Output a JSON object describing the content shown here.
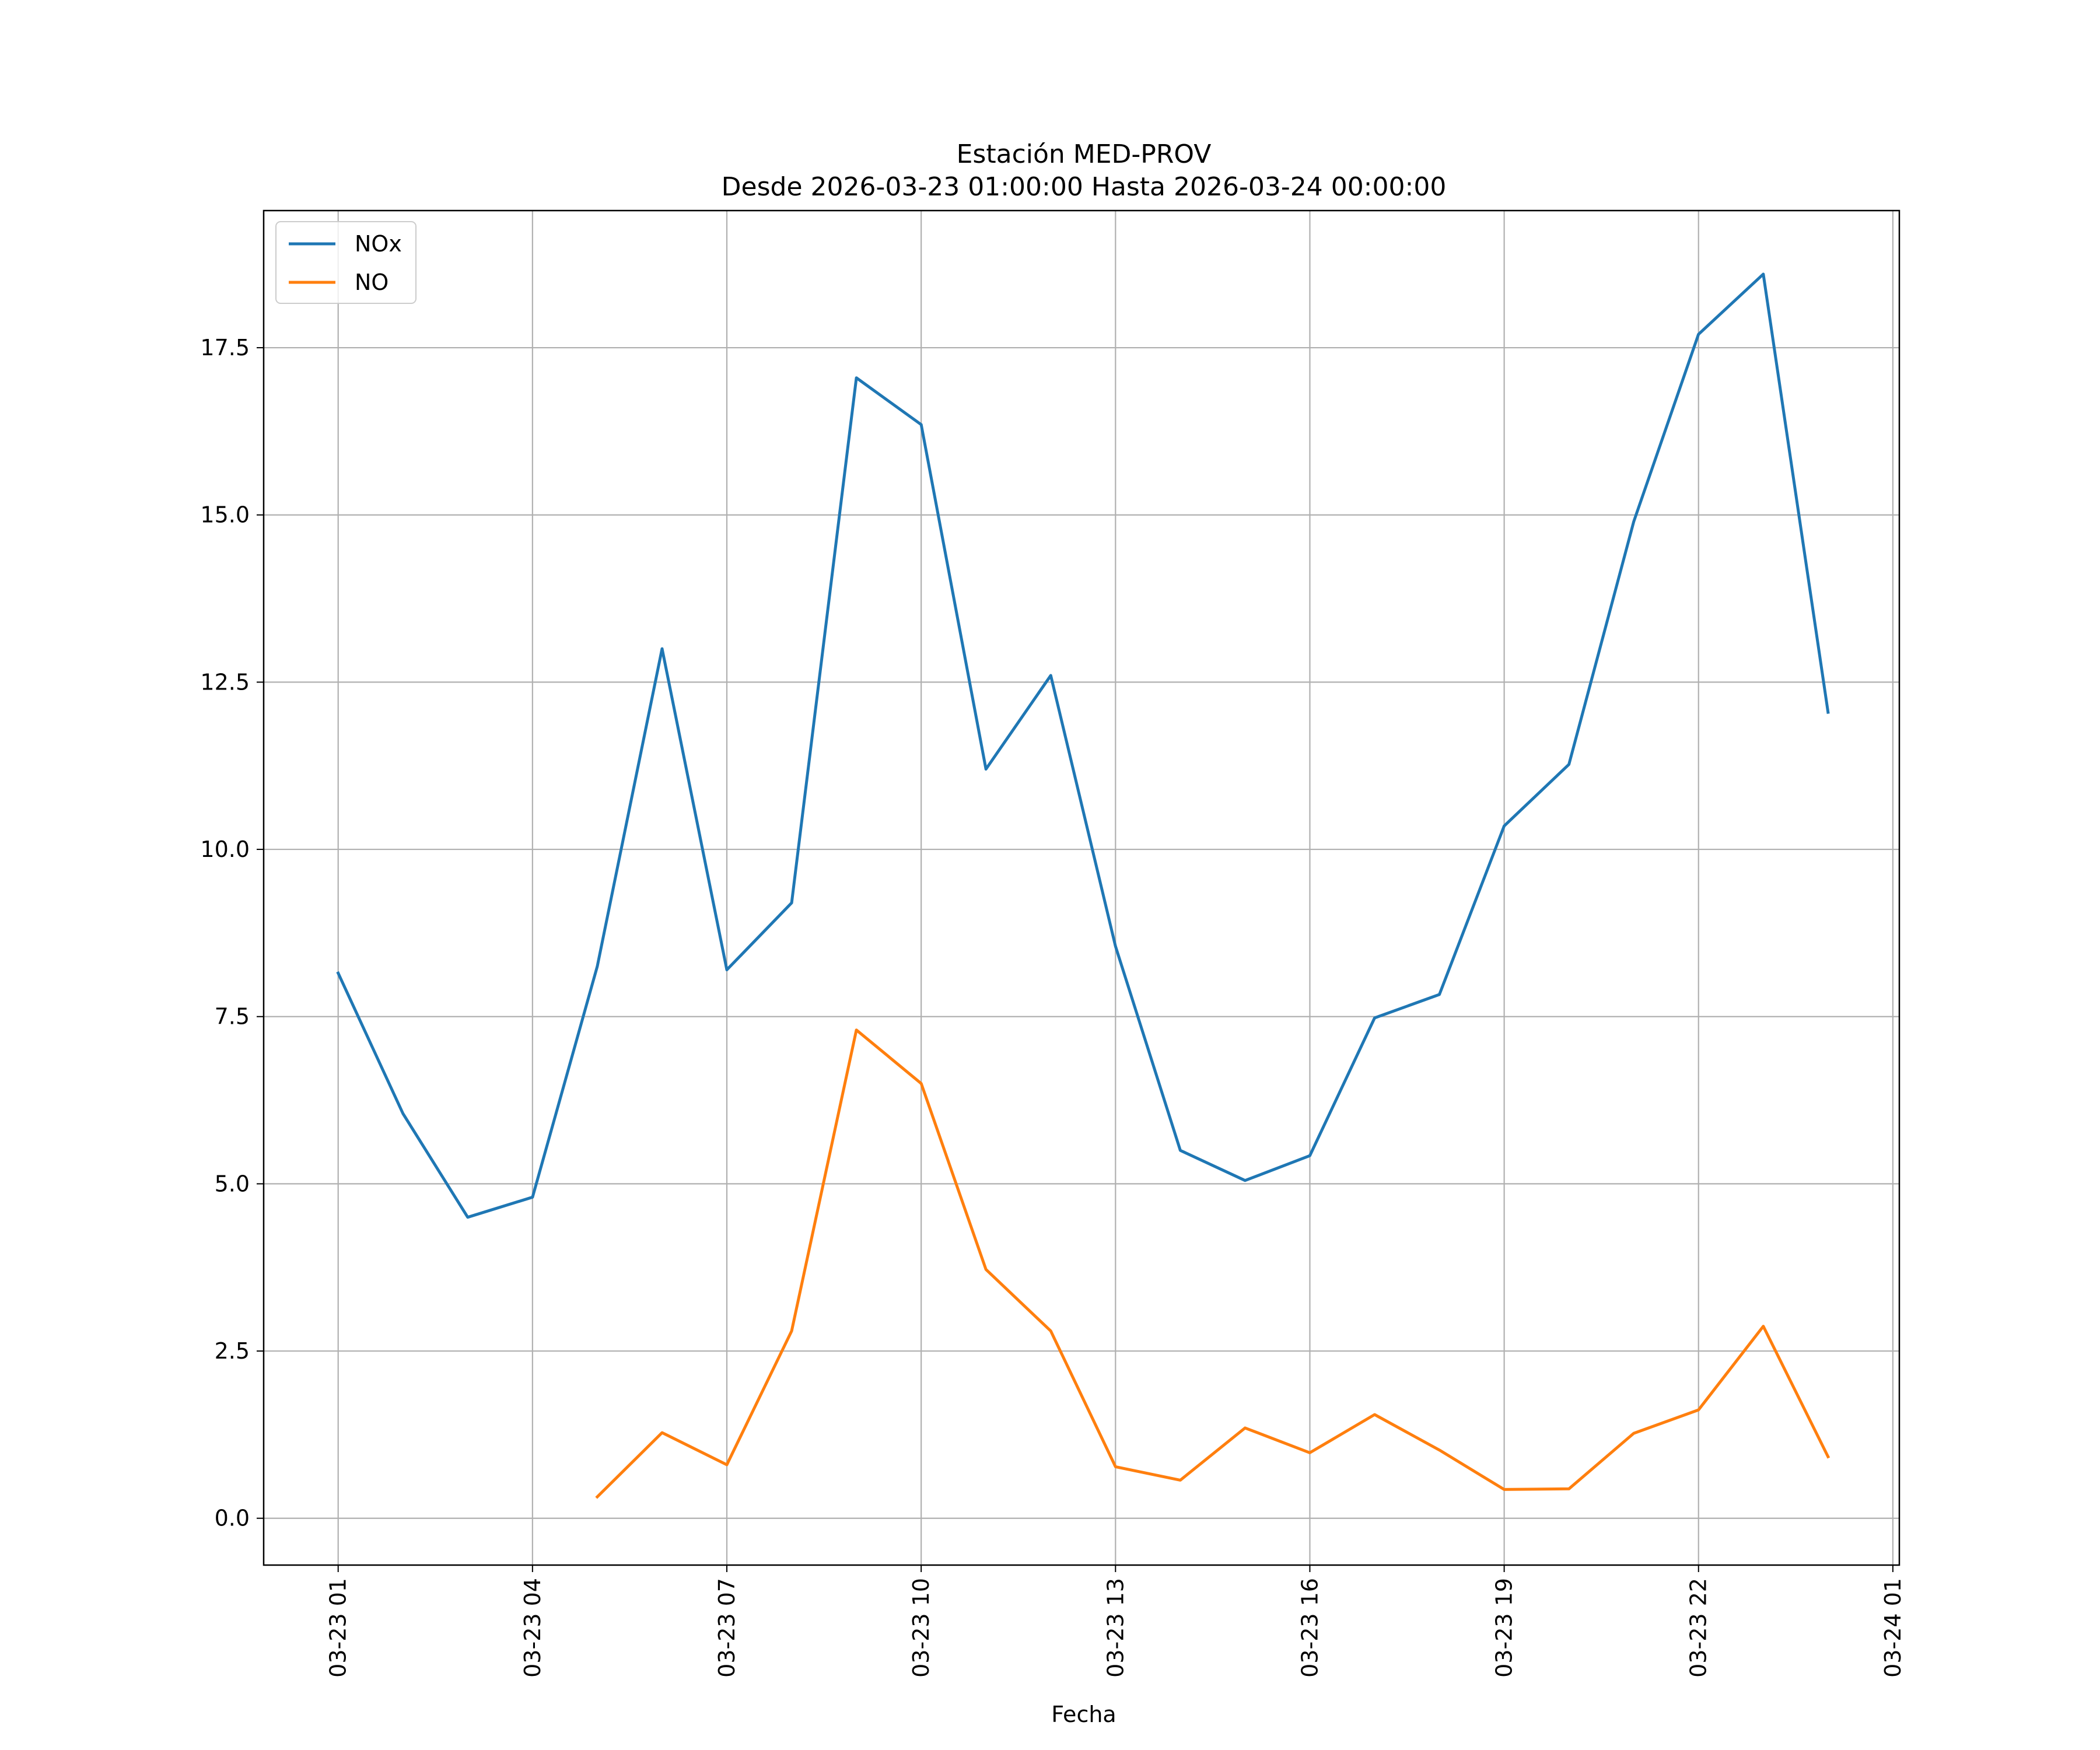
{
  "chart_data": {
    "type": "line",
    "title": "Estación MED-PROV",
    "subtitle": "Desde 2026-03-23 01:00:00 Hasta 2026-03-24 00:00:00",
    "xlabel": "Fecha",
    "ylabel": "",
    "x_hours": [
      1,
      2,
      3,
      4,
      5,
      6,
      7,
      8,
      9,
      10,
      11,
      12,
      13,
      14,
      15,
      16,
      17,
      18,
      19,
      20,
      21,
      22,
      23,
      24
    ],
    "xlim": [
      -0.15,
      25.1
    ],
    "xticks": [
      {
        "h": 1,
        "label": "03-23 01"
      },
      {
        "h": 4,
        "label": "03-23 04"
      },
      {
        "h": 7,
        "label": "03-23 07"
      },
      {
        "h": 10,
        "label": "03-23 10"
      },
      {
        "h": 13,
        "label": "03-23 13"
      },
      {
        "h": 16,
        "label": "03-23 16"
      },
      {
        "h": 19,
        "label": "03-23 19"
      },
      {
        "h": 22,
        "label": "03-23 22"
      },
      {
        "h": 25,
        "label": "03-24 01"
      }
    ],
    "ylim": [
      -0.7,
      19.55
    ],
    "yticks": [
      {
        "v": 0.0,
        "label": "0.0"
      },
      {
        "v": 2.5,
        "label": "2.5"
      },
      {
        "v": 5.0,
        "label": "5.0"
      },
      {
        "v": 7.5,
        "label": "7.5"
      },
      {
        "v": 10.0,
        "label": "10.0"
      },
      {
        "v": 12.5,
        "label": "12.5"
      },
      {
        "v": 15.0,
        "label": "15.0"
      },
      {
        "v": 17.5,
        "label": "17.5"
      }
    ],
    "grid": true,
    "legend_position": "top-left",
    "series": [
      {
        "name": "NOx",
        "color": "#1f77b4",
        "values": [
          8.15,
          6.05,
          4.5,
          4.8,
          8.25,
          13.0,
          8.2,
          9.2,
          17.05,
          16.35,
          11.2,
          12.6,
          8.55,
          5.5,
          5.05,
          5.42,
          7.48,
          7.83,
          10.35,
          11.27,
          14.9,
          17.7,
          18.6,
          12.05
        ]
      },
      {
        "name": "NO",
        "color": "#ff7f0e",
        "values": [
          null,
          null,
          null,
          null,
          0.32,
          1.28,
          0.8,
          2.8,
          7.3,
          6.5,
          3.72,
          2.8,
          0.77,
          0.57,
          1.35,
          0.98,
          1.55,
          1.02,
          0.43,
          0.44,
          1.27,
          1.62,
          2.87,
          0.92
        ]
      }
    ]
  }
}
